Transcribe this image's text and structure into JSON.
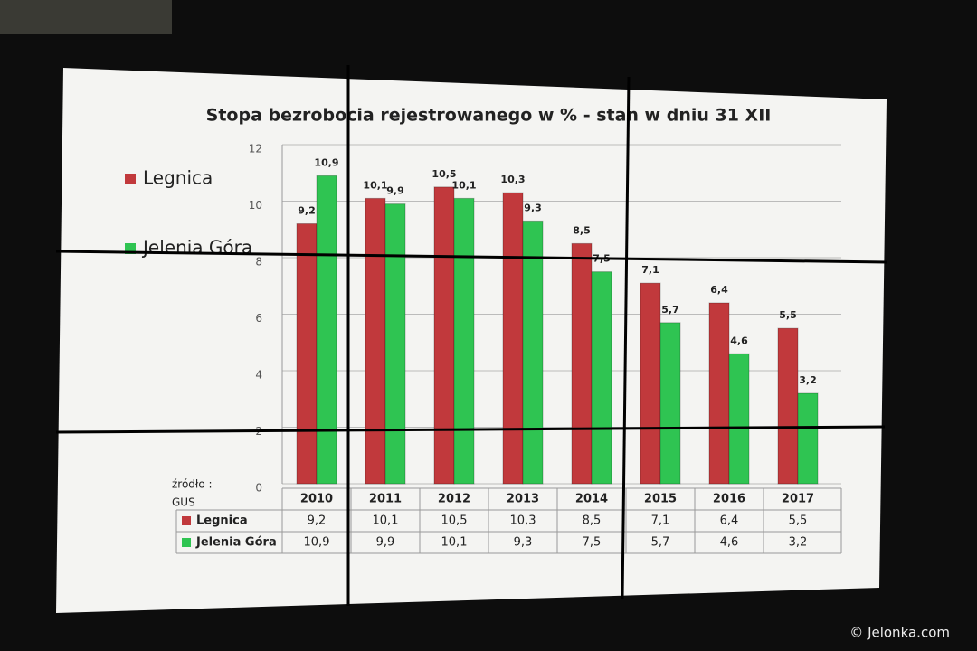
{
  "chart_data": {
    "type": "bar",
    "title": "Stopa bezrobocia rejestrowanego w % - stan w dniu 31 XII",
    "source_label": "źródło :",
    "source": "GUS",
    "categories": [
      "2010",
      "2011",
      "2012",
      "2013",
      "2014",
      "2015",
      "2016",
      "2017"
    ],
    "series": [
      {
        "name": "Legnica",
        "color": "#c1393c",
        "values": [
          9.2,
          10.1,
          10.5,
          10.3,
          8.5,
          7.1,
          6.4,
          5.5
        ],
        "value_labels": [
          "9,2",
          "10,1",
          "10,5",
          "10,3",
          "8,5",
          "7,1",
          "6,4",
          "5,5"
        ]
      },
      {
        "name": "Jelenia Góra",
        "color": "#2fc452",
        "values": [
          10.9,
          9.9,
          10.1,
          9.3,
          7.5,
          5.7,
          4.6,
          3.2
        ],
        "value_labels": [
          "10,9",
          "9,9",
          "10,1",
          "9,3",
          "7,5",
          "5,7",
          "4,6",
          "3,2"
        ]
      }
    ],
    "ylim": [
      0,
      12
    ],
    "yticks": [
      0,
      2,
      4,
      6,
      8,
      10,
      12
    ],
    "grid": true,
    "legend": "left"
  },
  "watermark": "© Jelonka.com"
}
